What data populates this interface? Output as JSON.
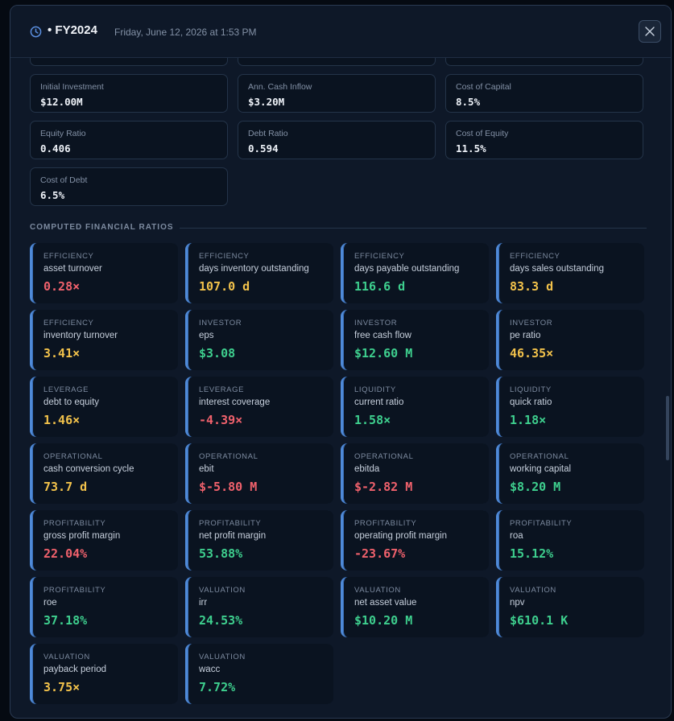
{
  "header": {
    "title": "• FY2024",
    "timestamp": "Friday, June 12, 2026 at 1:53 PM"
  },
  "colors": {
    "good": "#3ecf8e",
    "warn": "#f2c24b",
    "bad": "#f0616c",
    "accent": "#4f8ad8"
  },
  "inputs": [
    {
      "label": "Initial Investment",
      "value": "$12.00M"
    },
    {
      "label": "Ann. Cash Inflow",
      "value": "$3.20M"
    },
    {
      "label": "Cost of Capital",
      "value": "8.5%"
    },
    {
      "label": "Equity Ratio",
      "value": "0.406"
    },
    {
      "label": "Debt Ratio",
      "value": "0.594"
    },
    {
      "label": "Cost of Equity",
      "value": "11.5%"
    },
    {
      "label": "Cost of Debt",
      "value": "6.5%"
    }
  ],
  "section_title": "COMPUTED FINANCIAL RATIOS",
  "ratios": [
    {
      "category": "EFFICIENCY",
      "name": "asset turnover",
      "value": "0.28×",
      "status": "bad"
    },
    {
      "category": "EFFICIENCY",
      "name": "days inventory outstanding",
      "value": "107.0 d",
      "status": "warn"
    },
    {
      "category": "EFFICIENCY",
      "name": "days payable outstanding",
      "value": "116.6 d",
      "status": "good"
    },
    {
      "category": "EFFICIENCY",
      "name": "days sales outstanding",
      "value": "83.3 d",
      "status": "warn"
    },
    {
      "category": "EFFICIENCY",
      "name": "inventory turnover",
      "value": "3.41×",
      "status": "warn"
    },
    {
      "category": "INVESTOR",
      "name": "eps",
      "value": "$3.08",
      "status": "good"
    },
    {
      "category": "INVESTOR",
      "name": "free cash flow",
      "value": "$12.60 M",
      "status": "good"
    },
    {
      "category": "INVESTOR",
      "name": "pe ratio",
      "value": "46.35×",
      "status": "warn"
    },
    {
      "category": "LEVERAGE",
      "name": "debt to equity",
      "value": "1.46×",
      "status": "warn"
    },
    {
      "category": "LEVERAGE",
      "name": "interest coverage",
      "value": "-4.39×",
      "status": "bad"
    },
    {
      "category": "LIQUIDITY",
      "name": "current ratio",
      "value": "1.58×",
      "status": "good"
    },
    {
      "category": "LIQUIDITY",
      "name": "quick ratio",
      "value": "1.18×",
      "status": "good"
    },
    {
      "category": "OPERATIONAL",
      "name": "cash conversion cycle",
      "value": "73.7 d",
      "status": "warn"
    },
    {
      "category": "OPERATIONAL",
      "name": "ebit",
      "value": "$-5.80 M",
      "status": "bad"
    },
    {
      "category": "OPERATIONAL",
      "name": "ebitda",
      "value": "$-2.82 M",
      "status": "bad"
    },
    {
      "category": "OPERATIONAL",
      "name": "working capital",
      "value": "$8.20 M",
      "status": "good"
    },
    {
      "category": "PROFITABILITY",
      "name": "gross profit margin",
      "value": "22.04%",
      "status": "bad"
    },
    {
      "category": "PROFITABILITY",
      "name": "net profit margin",
      "value": "53.88%",
      "status": "good"
    },
    {
      "category": "PROFITABILITY",
      "name": "operating profit margin",
      "value": "-23.67%",
      "status": "bad"
    },
    {
      "category": "PROFITABILITY",
      "name": "roa",
      "value": "15.12%",
      "status": "good"
    },
    {
      "category": "PROFITABILITY",
      "name": "roe",
      "value": "37.18%",
      "status": "good"
    },
    {
      "category": "VALUATION",
      "name": "irr",
      "value": "24.53%",
      "status": "good"
    },
    {
      "category": "VALUATION",
      "name": "net asset value",
      "value": "$10.20 M",
      "status": "good"
    },
    {
      "category": "VALUATION",
      "name": "npv",
      "value": "$610.1 K",
      "status": "good"
    },
    {
      "category": "VALUATION",
      "name": "payback period",
      "value": "3.75×",
      "status": "warn"
    },
    {
      "category": "VALUATION",
      "name": "wacc",
      "value": "7.72%",
      "status": "good"
    }
  ]
}
